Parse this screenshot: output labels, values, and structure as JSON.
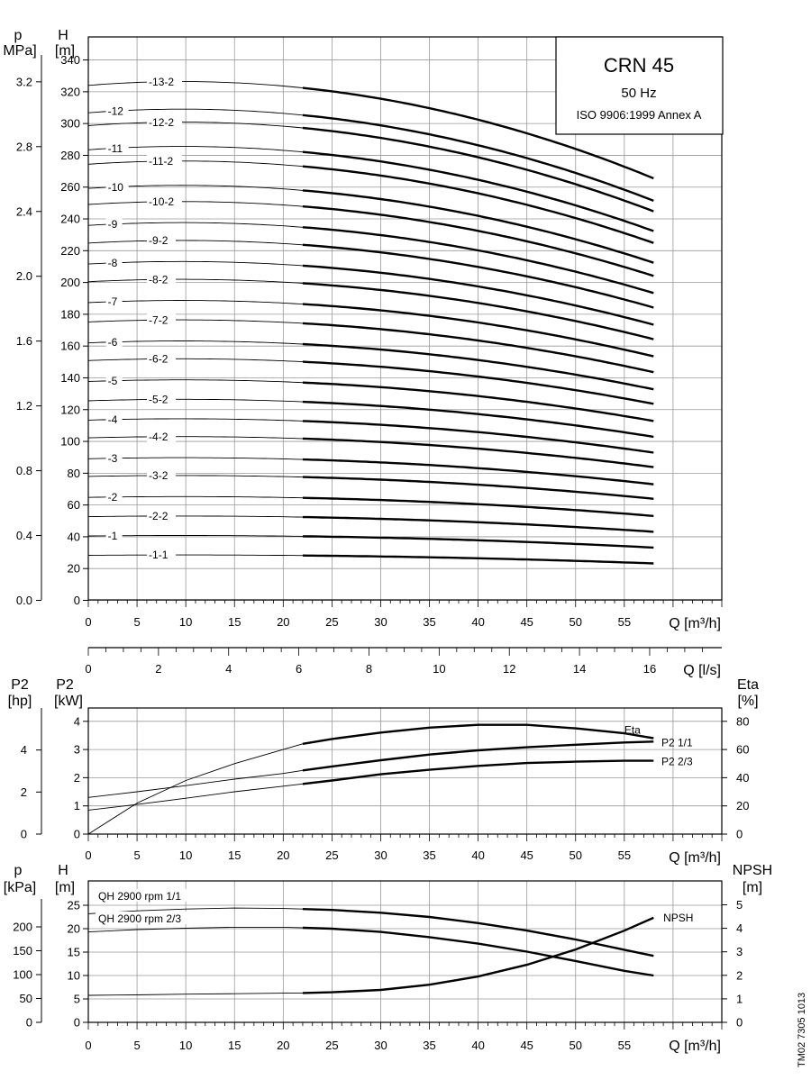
{
  "chart_data": [
    {
      "type": "line",
      "title_box": {
        "title": "CRN 45",
        "line2": "50 Hz",
        "line3": "ISO 9906:1999 Annex A"
      },
      "x_title": "Q [m³/h]",
      "x_ticks": [
        0,
        5,
        10,
        15,
        20,
        25,
        30,
        35,
        40,
        45,
        50,
        55
      ],
      "x_range": [
        0,
        65
      ],
      "x2_title": "Q [l/s]",
      "x2_ticks": [
        0,
        2,
        4,
        6,
        8,
        10,
        12,
        14,
        16
      ],
      "y_title": "H",
      "y_unit": "[m]",
      "y_ticks": [
        0,
        20,
        40,
        60,
        80,
        100,
        120,
        140,
        160,
        180,
        200,
        220,
        240,
        260,
        280,
        300,
        320,
        340
      ],
      "y_range": [
        0,
        340
      ],
      "p_title": "p",
      "p_unit": "MPa]",
      "p_ticks": [
        "0.0",
        "0.4",
        "0.8",
        "1.2",
        "1.6",
        "2.0",
        "2.4",
        "2.8",
        "3.2"
      ],
      "p_max": 3.2,
      "series": [
        {
          "name": "-13-2",
          "H0": 320
        },
        {
          "name": "-12",
          "H0": 303
        },
        {
          "name": "-12-2",
          "H0": 295
        },
        {
          "name": "-11",
          "H0": 280
        },
        {
          "name": "-11-2",
          "H0": 271
        },
        {
          "name": "-10",
          "H0": 256
        },
        {
          "name": "-10-2",
          "H0": 246
        },
        {
          "name": "-9",
          "H0": 233
        },
        {
          "name": "-9-2",
          "H0": 222
        },
        {
          "name": "-8",
          "H0": 209
        },
        {
          "name": "-8-2",
          "H0": 198
        },
        {
          "name": "-7",
          "H0": 185
        },
        {
          "name": "-7-2",
          "H0": 173
        },
        {
          "name": "-6",
          "H0": 160
        },
        {
          "name": "-6-2",
          "H0": 149
        },
        {
          "name": "-5",
          "H0": 136
        },
        {
          "name": "-5-2",
          "H0": 124
        },
        {
          "name": "-4",
          "H0": 112
        },
        {
          "name": "-4-2",
          "H0": 101
        },
        {
          "name": "-3",
          "H0": 88
        },
        {
          "name": "-3-2",
          "H0": 77
        },
        {
          "name": "-2",
          "H0": 64
        },
        {
          "name": "-2-2",
          "H0": 52
        },
        {
          "name": "-1",
          "H0": 40
        },
        {
          "name": "-1-1",
          "H0": 28
        }
      ],
      "curve_model": "H(Q) ≈ H0 + (H0/320)·(4 + 0.5·Q − 0.026·Q²), Q 0–58, drawn bold from 22 m³/h"
    },
    {
      "type": "line",
      "x_title": "Q [m³/h]",
      "x_ticks": [
        0,
        5,
        10,
        15,
        20,
        25,
        30,
        35,
        40,
        45,
        50,
        55
      ],
      "left_title": "P2",
      "left_unit": "[kW]",
      "left_ticks": [
        0,
        1,
        2,
        3,
        4
      ],
      "hp_title": "P2",
      "hp_unit": "[hp]",
      "hp_ticks": [
        0,
        2,
        4
      ],
      "right_title": "Eta",
      "right_unit": "[%]",
      "right_ticks": [
        0,
        20,
        40,
        60,
        80
      ],
      "series": [
        {
          "name": "Eta",
          "x": [
            0,
            5,
            10,
            15,
            20,
            22,
            25,
            30,
            35,
            40,
            45,
            50,
            55,
            58
          ],
          "y": [
            0,
            22,
            38,
            50,
            60,
            64,
            67.5,
            72,
            75.5,
            77.5,
            77.5,
            75,
            71.5,
            68
          ]
        },
        {
          "name": "P2 1/1",
          "x": [
            0,
            5,
            10,
            15,
            20,
            22,
            25,
            30,
            35,
            40,
            45,
            50,
            55,
            58
          ],
          "y": [
            1.3,
            1.5,
            1.72,
            1.95,
            2.15,
            2.26,
            2.4,
            2.62,
            2.82,
            2.97,
            3.08,
            3.17,
            3.25,
            3.28
          ]
        },
        {
          "name": "P2 2/3",
          "x": [
            0,
            5,
            10,
            15,
            20,
            22,
            25,
            30,
            35,
            40,
            45,
            50,
            55,
            58
          ],
          "y": [
            0.85,
            1.05,
            1.27,
            1.5,
            1.7,
            1.78,
            1.9,
            2.12,
            2.28,
            2.42,
            2.52,
            2.57,
            2.6,
            2.6
          ]
        }
      ]
    },
    {
      "type": "line",
      "x_title": "Q [m³/h]",
      "x_ticks": [
        0,
        5,
        10,
        15,
        20,
        25,
        30,
        35,
        40,
        45,
        50,
        55
      ],
      "left_title": "H",
      "left_unit": "[m]",
      "left_ticks": [
        0,
        5,
        10,
        15,
        20,
        25
      ],
      "p_title": "p",
      "p_unit": "[kPa]",
      "p_ticks": [
        0,
        50,
        100,
        150,
        200
      ],
      "right_title": "NPSH",
      "right_unit": "[m]",
      "right_ticks": [
        0,
        1,
        2,
        3,
        4,
        5
      ],
      "series": [
        {
          "name": "QH 2900 rpm 1/1",
          "x": [
            0,
            5,
            10,
            15,
            20,
            22,
            25,
            30,
            35,
            40,
            45,
            50,
            55,
            58
          ],
          "y": [
            23.2,
            23.8,
            24.2,
            24.4,
            24.3,
            24.2,
            24.0,
            23.4,
            22.5,
            21.2,
            19.6,
            17.7,
            15.5,
            14.2
          ]
        },
        {
          "name": "QH 2900 rpm 2/3",
          "x": [
            0,
            5,
            10,
            15,
            20,
            22,
            25,
            30,
            35,
            40,
            45,
            50,
            55,
            58
          ],
          "y": [
            19.3,
            19.8,
            20.1,
            20.3,
            20.3,
            20.2,
            20.0,
            19.3,
            18.2,
            16.8,
            15.1,
            13.1,
            11.0,
            10.0
          ]
        },
        {
          "name": "NPSH",
          "x": [
            0,
            5,
            10,
            15,
            20,
            22,
            25,
            30,
            35,
            40,
            45,
            50,
            55,
            58
          ],
          "y": [
            1.15,
            1.17,
            1.2,
            1.22,
            1.24,
            1.25,
            1.28,
            1.38,
            1.6,
            1.95,
            2.45,
            3.1,
            3.9,
            4.45
          ]
        }
      ]
    }
  ],
  "figure_code": "TM02 7305 1013"
}
